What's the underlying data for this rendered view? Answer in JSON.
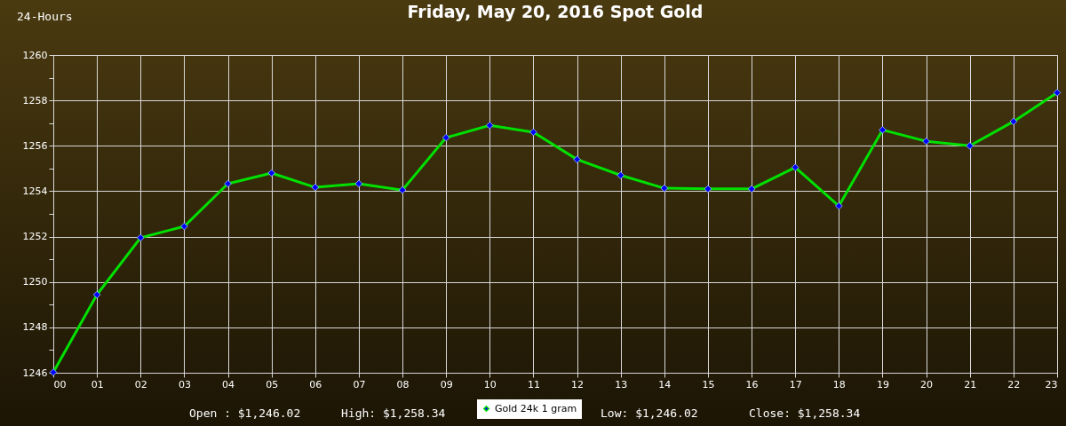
{
  "chart_data": {
    "type": "line",
    "title": "Friday, May 20, 2016 Spot Gold",
    "annotations": [
      "24-Hours",
      "Open : $1,246.02",
      "High: $1,258.34",
      "Low: $1,246.02",
      "Close: $1,258.34"
    ],
    "categories": [
      "00",
      "01",
      "02",
      "03",
      "04",
      "05",
      "06",
      "07",
      "08",
      "09",
      "10",
      "11",
      "12",
      "13",
      "14",
      "15",
      "16",
      "17",
      "18",
      "19",
      "20",
      "21",
      "22",
      "23"
    ],
    "series": [
      {
        "name": "Gold 24k 1 gram",
        "color": "#00e000",
        "values": [
          1246.02,
          1249.44,
          1251.95,
          1252.45,
          1254.33,
          1254.8,
          1254.17,
          1254.33,
          1254.05,
          1256.36,
          1256.9,
          1256.6,
          1255.4,
          1254.7,
          1254.13,
          1254.1,
          1254.1,
          1255.05,
          1253.35,
          1256.7,
          1256.2,
          1256.0,
          1257.07,
          1258.34
        ]
      }
    ],
    "ylim": [
      1246,
      1260
    ],
    "yticks": [
      1246,
      {
        "value": 1247,
        "label": null
      },
      1248,
      {
        "value": 1249,
        "label": null
      },
      1250,
      {
        "value": 1251,
        "label": null
      },
      1252,
      {
        "value": 1253,
        "label": null
      },
      1254,
      {
        "value": 1255,
        "label": null
      },
      1256,
      {
        "value": 1257,
        "label": null
      },
      1258,
      {
        "value": 1259,
        "label": null
      },
      1260
    ],
    "grid": true,
    "legend": "bottom",
    "marker": "diamond",
    "line_style": "solid"
  }
}
